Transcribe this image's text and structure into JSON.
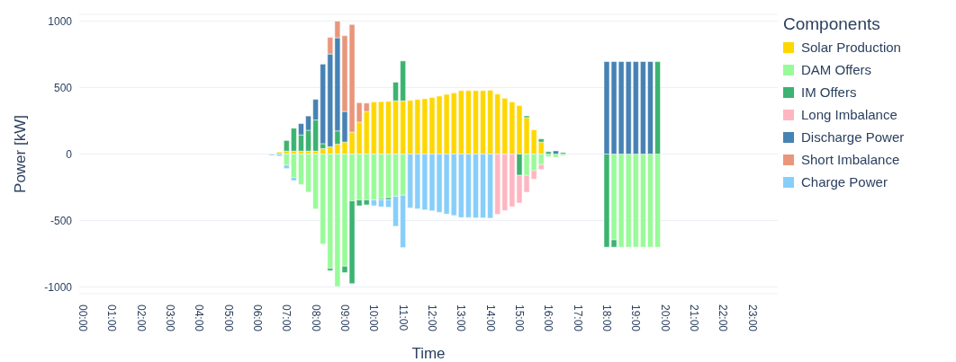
{
  "chart_data": {
    "type": "bar",
    "stacked": true,
    "xlabel": "Time",
    "ylabel": "Power [kW]",
    "legend_title": "Components",
    "legend": "right",
    "grid": "y",
    "categories": [
      "00:00",
      null,
      null,
      null,
      "01:00",
      null,
      null,
      null,
      "02:00",
      null,
      null,
      null,
      "03:00",
      null,
      null,
      null,
      "04:00",
      null,
      null,
      null,
      "05:00",
      null,
      null,
      null,
      "06:00",
      null,
      null,
      null,
      "07:00",
      null,
      null,
      null,
      "08:00",
      null,
      null,
      null,
      "09:00",
      null,
      null,
      null,
      "10:00",
      null,
      null,
      null,
      "11:00",
      null,
      null,
      null,
      "12:00",
      null,
      null,
      null,
      "13:00",
      null,
      null,
      null,
      "14:00",
      null,
      null,
      null,
      "15:00",
      null,
      null,
      null,
      "16:00",
      null,
      null,
      null,
      "17:00",
      null,
      null,
      null,
      "18:00",
      null,
      null,
      null,
      "19:00",
      null,
      null,
      null,
      "20:00",
      null,
      null,
      null,
      "21:00",
      null,
      null,
      null,
      "22:00",
      null,
      null,
      null,
      "23:00",
      null,
      null,
      null
    ],
    "ylim": [
      -1050,
      1050
    ],
    "yticks": [
      -1000,
      -500,
      0,
      500,
      1000
    ],
    "series": [
      {
        "name": "Solar Production",
        "color": "#ffd700",
        "values": [
          null,
          null,
          null,
          null,
          null,
          null,
          null,
          null,
          null,
          null,
          null,
          null,
          null,
          null,
          null,
          null,
          null,
          null,
          null,
          null,
          null,
          null,
          null,
          null,
          null,
          null,
          null,
          15,
          22,
          22,
          22,
          22,
          22,
          41,
          55,
          74,
          90,
          164,
          240,
          320,
          392,
          394,
          396,
          400,
          400,
          403,
          410,
          416,
          425,
          436,
          449,
          460,
          477,
          477,
          477,
          477,
          480,
          451,
          420,
          392,
          364,
          274,
          182,
          90,
          null,
          null,
          null,
          null,
          null,
          null,
          null,
          null,
          null,
          null,
          null,
          null,
          null,
          null,
          null,
          null,
          null,
          null,
          null,
          null,
          null,
          null,
          null,
          null,
          null,
          null,
          null,
          null,
          null,
          null,
          null,
          null
        ]
      },
      {
        "name": "DAM Offers",
        "color": "#98fb98",
        "values": [
          null,
          null,
          null,
          null,
          null,
          null,
          null,
          null,
          null,
          null,
          null,
          null,
          null,
          null,
          null,
          null,
          null,
          null,
          null,
          null,
          null,
          null,
          null,
          null,
          null,
          null,
          null,
          null,
          -83,
          -177,
          -229,
          -286,
          -413,
          -677,
          -859,
          -996,
          -843,
          -352,
          -345,
          -345,
          -345,
          -335,
          -328,
          -317,
          -309,
          null,
          null,
          null,
          null,
          null,
          null,
          null,
          null,
          null,
          null,
          null,
          null,
          null,
          null,
          null,
          null,
          -160,
          -125,
          -79,
          -20,
          -24,
          -11,
          null,
          null,
          null,
          null,
          null,
          null,
          -645,
          -700,
          -700,
          -700,
          -700,
          -700,
          -700,
          null,
          null,
          null,
          null,
          null,
          null,
          null,
          null,
          null,
          null,
          null,
          null,
          null,
          null,
          null,
          null
        ]
      },
      {
        "name": "IM Offers",
        "color": "#3cb371",
        "values": [
          null,
          null,
          null,
          null,
          null,
          null,
          null,
          null,
          null,
          null,
          null,
          null,
          null,
          null,
          null,
          null,
          null,
          null,
          null,
          null,
          null,
          null,
          null,
          null,
          null,
          null,
          null,
          null,
          80,
          172,
          122,
          157,
          234,
          37,
          -17,
          100,
          -48,
          -622,
          -44,
          -37,
          null,
          -9,
          -15,
          140,
          300,
          null,
          null,
          null,
          null,
          null,
          null,
          null,
          null,
          null,
          null,
          null,
          null,
          null,
          null,
          null,
          -160,
          13,
          null,
          24,
          18,
          null,
          11,
          null,
          null,
          null,
          null,
          null,
          -700,
          -55,
          null,
          null,
          null,
          null,
          null,
          695,
          null,
          null,
          null,
          null,
          null,
          null,
          null,
          null,
          null,
          null,
          null,
          null,
          null,
          null,
          null,
          null
        ]
      },
      {
        "name": "Long Imbalance",
        "color": "#ffb6c1",
        "values": [
          null,
          null,
          null,
          null,
          null,
          null,
          null,
          null,
          null,
          null,
          null,
          null,
          null,
          null,
          null,
          null,
          null,
          null,
          null,
          null,
          null,
          null,
          null,
          null,
          null,
          null,
          null,
          null,
          null,
          null,
          null,
          null,
          null,
          null,
          null,
          null,
          null,
          null,
          null,
          null,
          null,
          null,
          null,
          null,
          null,
          null,
          null,
          null,
          null,
          null,
          null,
          null,
          null,
          null,
          null,
          null,
          null,
          -453,
          -425,
          -396,
          -208,
          -127,
          -64,
          -37,
          null,
          null,
          null,
          null,
          null,
          null,
          null,
          null,
          null,
          null,
          null,
          null,
          null,
          null,
          null,
          null,
          null,
          null,
          null,
          null,
          null,
          null,
          null,
          null,
          null,
          null,
          null,
          null,
          null,
          null,
          null,
          null
        ]
      },
      {
        "name": "Discharge Power",
        "color": "#4682b4",
        "values": [
          null,
          null,
          null,
          null,
          null,
          null,
          null,
          null,
          null,
          null,
          null,
          null,
          null,
          null,
          null,
          null,
          null,
          null,
          null,
          null,
          null,
          null,
          null,
          null,
          null,
          null,
          null,
          null,
          null,
          null,
          85,
          107,
          155,
          598,
          697,
          700,
          230,
          null,
          null,
          null,
          null,
          null,
          null,
          null,
          null,
          null,
          null,
          null,
          null,
          null,
          null,
          null,
          null,
          null,
          null,
          null,
          null,
          null,
          null,
          null,
          null,
          null,
          null,
          null,
          null,
          24,
          null,
          null,
          null,
          null,
          null,
          null,
          695,
          695,
          695,
          695,
          695,
          695,
          695,
          null,
          null,
          null,
          null,
          null,
          null,
          null,
          null,
          null,
          null,
          null,
          null,
          null,
          null,
          null,
          null,
          null
        ]
      },
      {
        "name": "Short Imbalance",
        "color": "#e9967a",
        "values": [
          null,
          null,
          null,
          null,
          null,
          null,
          null,
          null,
          null,
          null,
          null,
          null,
          null,
          null,
          null,
          null,
          null,
          null,
          null,
          null,
          null,
          null,
          null,
          null,
          null,
          null,
          null,
          null,
          null,
          null,
          null,
          null,
          null,
          null,
          125,
          125,
          570,
          810,
          146,
          63,
          null,
          null,
          null,
          null,
          null,
          null,
          null,
          null,
          null,
          null,
          null,
          null,
          null,
          null,
          null,
          null,
          null,
          null,
          null,
          null,
          null,
          null,
          null,
          null,
          null,
          null,
          null,
          null,
          null,
          null,
          null,
          null,
          null,
          null,
          null,
          null,
          null,
          null,
          null,
          null,
          null,
          null,
          null,
          null,
          null,
          null,
          null,
          null,
          null,
          null,
          null,
          null,
          null,
          null,
          null,
          null
        ]
      },
      {
        "name": "Charge Power",
        "color": "#87cefa",
        "values": [
          null,
          null,
          null,
          null,
          null,
          null,
          null,
          null,
          null,
          null,
          null,
          null,
          null,
          null,
          null,
          null,
          null,
          null,
          null,
          null,
          null,
          null,
          null,
          null,
          null,
          null,
          -10,
          -15,
          -26,
          -22,
          null,
          null,
          null,
          null,
          null,
          null,
          null,
          null,
          null,
          null,
          -44,
          -53,
          -57,
          -226,
          -394,
          -405,
          -412,
          -420,
          -427,
          -438,
          -451,
          -462,
          -477,
          -477,
          -480,
          -480,
          -482,
          null,
          null,
          null,
          null,
          null,
          null,
          null,
          null,
          null,
          null,
          null,
          null,
          null,
          null,
          null,
          null,
          null,
          null,
          null,
          null,
          null,
          null,
          null,
          null,
          null,
          null,
          null,
          null,
          null,
          null,
          null,
          null,
          null,
          null,
          null,
          null,
          null,
          null,
          null
        ]
      }
    ]
  }
}
